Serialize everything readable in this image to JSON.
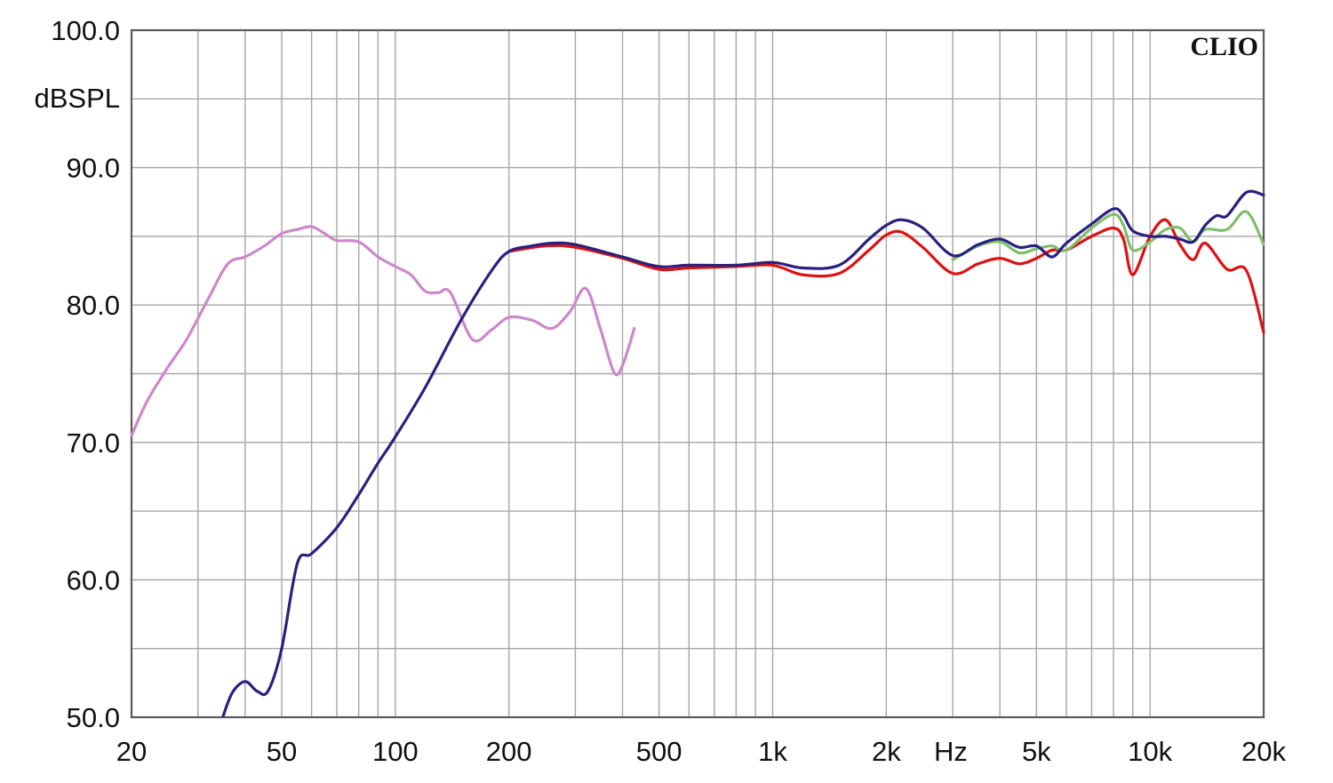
{
  "brand": "CLIO",
  "chart_data": {
    "type": "line",
    "title": "",
    "xlabel": "Hz",
    "ylabel": "dBSPL",
    "xscale": "log",
    "xlim": [
      20,
      20000
    ],
    "ylim": [
      50,
      100
    ],
    "grid": true,
    "x_ticks": [
      {
        "value": 20,
        "label": "20"
      },
      {
        "value": 50,
        "label": "50"
      },
      {
        "value": 100,
        "label": "100"
      },
      {
        "value": 200,
        "label": "200"
      },
      {
        "value": 500,
        "label": "500"
      },
      {
        "value": 1000,
        "label": "1k"
      },
      {
        "value": 2000,
        "label": "2k"
      },
      {
        "value": 5000,
        "label": "5k"
      },
      {
        "value": 10000,
        "label": "10k"
      },
      {
        "value": 20000,
        "label": "20k"
      }
    ],
    "y_ticks": [
      {
        "value": 100,
        "label": "100.0"
      },
      {
        "value": 90,
        "label": "90.0"
      },
      {
        "value": 80,
        "label": "80.0"
      },
      {
        "value": 70,
        "label": "70.0"
      },
      {
        "value": 60,
        "label": "60.0"
      },
      {
        "value": 50,
        "label": "50.0"
      }
    ],
    "series": [
      {
        "color": "#cc88cc",
        "x": [
          20,
          22,
          25,
          28,
          32,
          36,
          40,
          45,
          50,
          55,
          60,
          65,
          70,
          80,
          90,
          100,
          110,
          120,
          130,
          140,
          160,
          180,
          200,
          230,
          260,
          290,
          320,
          350,
          380,
          400,
          430
        ],
        "y": [
          70.5,
          73,
          75.5,
          77.5,
          80.5,
          83,
          83.5,
          84.3,
          85.2,
          85.5,
          85.7,
          85.2,
          84.7,
          84.6,
          83.5,
          82.8,
          82.2,
          81,
          80.9,
          80.9,
          77.5,
          78.2,
          79.1,
          78.9,
          78.3,
          79.5,
          81.2,
          78.2,
          75.1,
          75.6,
          78.3
        ]
      },
      {
        "color": "#dd1111",
        "x": [
          200,
          250,
          300,
          400,
          500,
          600,
          800,
          1000,
          1200,
          1500,
          1800,
          2000,
          2200,
          2500,
          3000,
          3500,
          4000,
          4500,
          5000,
          5500,
          6000,
          7000,
          8000,
          8500,
          9000,
          10000,
          11000,
          12000,
          13000,
          14000,
          16000,
          18000,
          20000
        ],
        "y": [
          83.9,
          84.3,
          84.2,
          83.4,
          82.6,
          82.7,
          82.8,
          82.9,
          82.2,
          82.3,
          84,
          85.1,
          85.3,
          84.2,
          82.3,
          83,
          83.4,
          83,
          83.4,
          84,
          84,
          85,
          85.6,
          84.8,
          82.2,
          85,
          86.2,
          84.4,
          83.3,
          84.5,
          82.6,
          82.5,
          78
        ]
      },
      {
        "color": "#7fbf6a",
        "x": [
          3000,
          3500,
          4000,
          4500,
          5000,
          5500,
          6000,
          7000,
          8000,
          8500,
          9000,
          10000,
          11000,
          12000,
          13000,
          14000,
          16000,
          18000,
          20000
        ],
        "y": [
          83.3,
          84.3,
          84.6,
          83.8,
          84.1,
          84.3,
          84,
          85.6,
          86.6,
          85.8,
          84,
          84.6,
          85.5,
          85.6,
          84.6,
          85.5,
          85.5,
          86.8,
          84.4
        ]
      },
      {
        "color": "#2a2080",
        "x": [
          35,
          37,
          40,
          43,
          46,
          50,
          55,
          60,
          70,
          80,
          90,
          100,
          120,
          150,
          180,
          200,
          230,
          260,
          300,
          400,
          500,
          600,
          800,
          1000,
          1200,
          1500,
          1800,
          2000,
          2200,
          2500,
          3000,
          3500,
          4000,
          4500,
          5000,
          5500,
          6000,
          7000,
          8000,
          8500,
          9000,
          10000,
          11000,
          12000,
          13000,
          14000,
          15000,
          16000,
          18000,
          20000
        ],
        "y": [
          50.1,
          51.8,
          52.6,
          51.9,
          51.9,
          55,
          61.2,
          61.9,
          63.8,
          66.2,
          68.5,
          70.4,
          74,
          79,
          82.5,
          83.9,
          84.3,
          84.5,
          84.4,
          83.5,
          82.8,
          82.9,
          82.9,
          83.1,
          82.7,
          82.9,
          84.8,
          85.8,
          86.2,
          85.6,
          83.6,
          84.4,
          84.8,
          84.2,
          84.3,
          83.5,
          84.5,
          85.9,
          87,
          86.5,
          85.4,
          85,
          85,
          84.8,
          84.6,
          85.8,
          86.5,
          86.5,
          88.2,
          88
        ]
      }
    ]
  }
}
